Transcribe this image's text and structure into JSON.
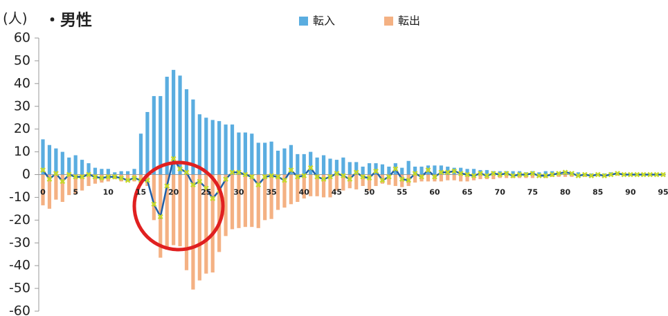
{
  "chart_data": {
    "type": "bar",
    "title": "・男性",
    "y_label": "(人)",
    "categories": [
      0,
      null,
      null,
      null,
      null,
      5,
      null,
      null,
      null,
      null,
      10,
      null,
      null,
      null,
      null,
      15,
      null,
      null,
      null,
      null,
      20,
      null,
      null,
      null,
      null,
      25,
      null,
      null,
      null,
      null,
      30,
      null,
      null,
      null,
      null,
      35,
      null,
      null,
      null,
      null,
      40,
      null,
      null,
      null,
      null,
      45,
      null,
      null,
      null,
      null,
      50,
      null,
      null,
      null,
      null,
      55,
      null,
      null,
      null,
      null,
      60,
      null,
      null,
      null,
      null,
      65,
      null,
      null,
      null,
      null,
      70,
      null,
      null,
      null,
      null,
      75,
      null,
      null,
      null,
      null,
      80,
      null,
      null,
      null,
      null,
      85,
      null,
      null,
      null,
      null,
      90,
      null,
      null,
      null,
      null,
      95
    ],
    "series": [
      {
        "name": "転入",
        "color": "#5aade0",
        "values": [
          15.5,
          13,
          11.5,
          10,
          7.5,
          8.5,
          6.5,
          5,
          3,
          2.5,
          2.5,
          1,
          1.5,
          1.5,
          2.5,
          18,
          27.5,
          34.5,
          34.5,
          43,
          46,
          43.5,
          37.5,
          33,
          26.5,
          25,
          24,
          23.5,
          22,
          22,
          18.5,
          18.5,
          18,
          14,
          14,
          14.5,
          10.5,
          11.5,
          13,
          9,
          9,
          10,
          7.5,
          8.5,
          7,
          6.5,
          7.5,
          5.5,
          5.5,
          3.5,
          5,
          5,
          4.5,
          3.5,
          5,
          3,
          6,
          3.5,
          3.5,
          4,
          4,
          4,
          3.5,
          3,
          3,
          2.5,
          2.5,
          2,
          2,
          1.5,
          1.5,
          1.5,
          1.5,
          1.5,
          1,
          1.5,
          1,
          1.5,
          1.5,
          1,
          1,
          1,
          1,
          0.5,
          0.5,
          0.5,
          0.5,
          1,
          0.5,
          0.5,
          0.5,
          0.5,
          0.5,
          0.5,
          0.5,
          0.5
        ]
      },
      {
        "name": "転出",
        "color": "#f4b183",
        "values": [
          -13.5,
          -15,
          -11,
          -12,
          -9,
          -8.5,
          -7,
          -5,
          -4,
          -3.5,
          -3,
          -2,
          -3,
          -3,
          -3,
          -4,
          -5,
          -20,
          -36.5,
          -33,
          -31,
          -31.5,
          -42,
          -50.5,
          -46.5,
          -43.5,
          -43,
          -34,
          -27,
          -24,
          -23.5,
          -23,
          -23,
          -23.5,
          -20,
          -19.5,
          -15.5,
          -14.5,
          -13,
          -12,
          -10.5,
          -9.5,
          -9.5,
          -10,
          -10,
          -7,
          -7,
          -6,
          -6.5,
          -5,
          -7,
          -5,
          -4,
          -4.5,
          -5,
          -5.5,
          -5,
          -3.5,
          -3,
          -3,
          -3,
          -3,
          -2.5,
          -2.5,
          -3,
          -3,
          -2.5,
          -2,
          -2,
          -2,
          -1.5,
          -1.5,
          -1.5,
          -1.5,
          -1.5,
          -1.5,
          -1,
          -1.5,
          -1,
          -1,
          -1,
          -1,
          -1,
          -1,
          -0.5,
          -0.5,
          -0.5,
          -0.5,
          -0.5,
          -0.5,
          -0.5,
          -0.5,
          -0.5,
          -0.5,
          -0.5,
          -0.5
        ]
      },
      {
        "type": "line",
        "color": "#1f5fa8",
        "marker_color": "#c6d92a",
        "values": [
          2,
          -2,
          0.5,
          -3,
          0,
          -1,
          -1,
          0,
          -1,
          -1.5,
          -1,
          -1,
          -1.5,
          -2.5,
          -1.5,
          -2.5,
          -2.5,
          -13,
          -18.5,
          -5,
          7,
          2.5,
          1,
          -4.5,
          -3,
          -6,
          -10.5,
          -7,
          -2,
          1,
          1,
          0,
          -1,
          -4.5,
          -1,
          -0.5,
          -1,
          -2.5,
          2,
          -1,
          -0.5,
          3,
          -1,
          -2,
          -1,
          0.5,
          -0.5,
          -2,
          1,
          -1,
          -1.5,
          1.5,
          -2.5,
          -1,
          2.5,
          -2,
          -2.5,
          0.5,
          -1,
          2,
          -1,
          1,
          1,
          1.5,
          0.5,
          0,
          -0.5,
          0.5,
          -0.5,
          0.5,
          0,
          0.5,
          -0.5,
          0,
          0,
          0.5,
          -0.5,
          -0.5,
          0,
          0.5,
          1,
          0.5,
          -0.5,
          0,
          -0.5,
          0,
          -0.5,
          0,
          0.5,
          0,
          0,
          0,
          0,
          0,
          0,
          0
        ]
      }
    ],
    "ylim": [
      -60,
      60
    ],
    "yticks": [
      -60,
      -50,
      -40,
      -30,
      -20,
      -10,
      0,
      10,
      20,
      30,
      40,
      50,
      60
    ],
    "legend": "top"
  }
}
